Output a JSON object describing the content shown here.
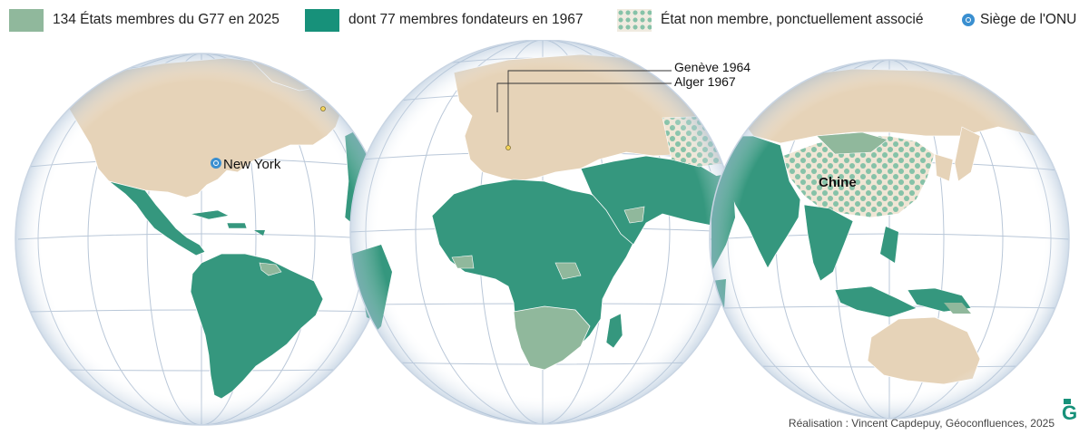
{
  "legend": {
    "member": {
      "label": "134 États membres du G77 en 2025",
      "color": "#90b89c"
    },
    "founder": {
      "label": "dont  77 membres fondateurs en 1967",
      "color": "#17917a"
    },
    "associate": {
      "label": "État non membre, ponctuellement associé",
      "color": "#86c2a8"
    },
    "un_hq": {
      "label": "Siège de l'ONU",
      "color": "#3a8fd0"
    }
  },
  "colors": {
    "ocean": "#ffffff",
    "nonmember_land": "#e6d3b8",
    "member": "#90b89c",
    "founder": "#35977e",
    "associate_dot": "#86c2a8",
    "graticule": "#b9c7d8"
  },
  "map_labels": {
    "new_york": "New York",
    "geneve": "Genève 1964",
    "alger": "Alger 1967",
    "chine": "Chine"
  },
  "credit": "Réalisation : Vincent Capdepuy, Géoconfluences, 2025",
  "logo_letter": "G"
}
